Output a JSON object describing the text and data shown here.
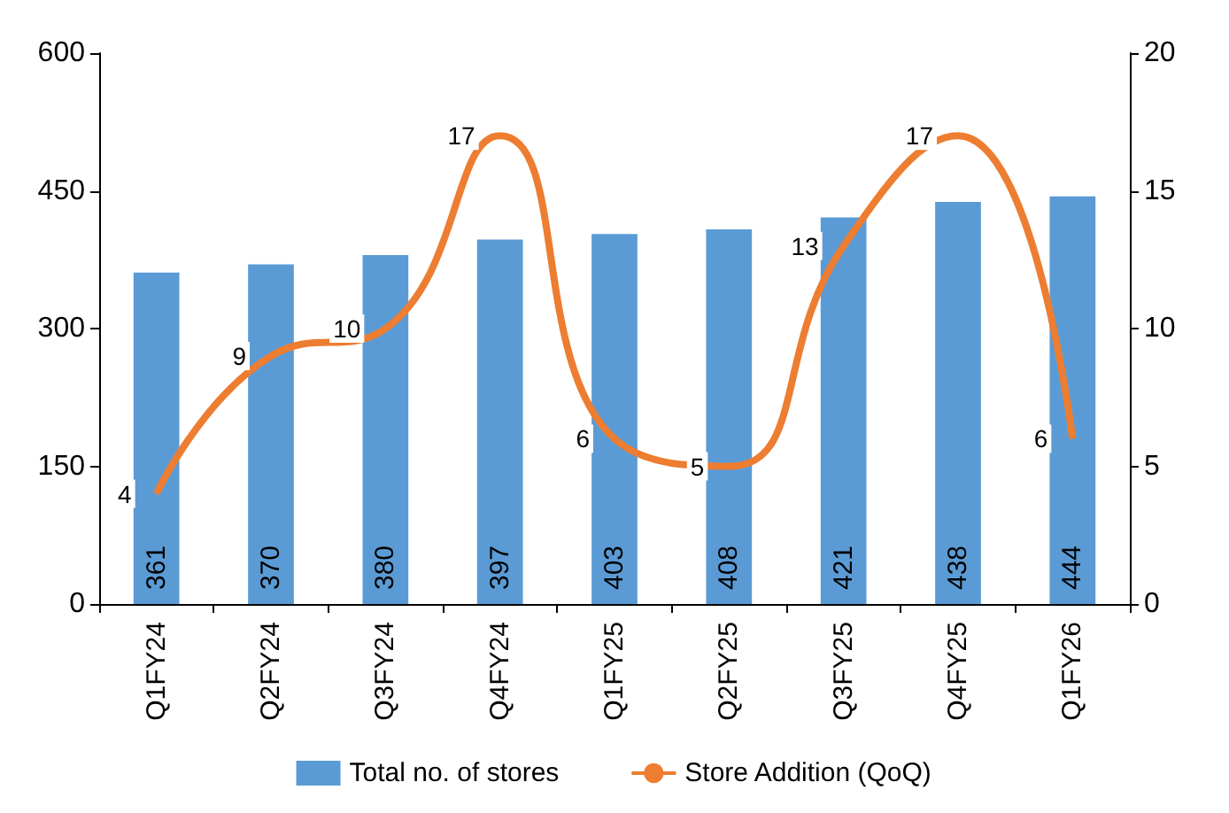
{
  "chart_data": {
    "type": "bar",
    "categories": [
      "Q1FY24",
      "Q2FY24",
      "Q3FY24",
      "Q4FY24",
      "Q1FY25",
      "Q2FY25",
      "Q3FY25",
      "Q4FY25",
      "Q1FY26"
    ],
    "series": [
      {
        "name": "Total no. of stores",
        "color": "#5b9bd5",
        "values": [
          361,
          370,
          380,
          397,
          403,
          408,
          421,
          438,
          444
        ]
      },
      {
        "name": "Store Addition (QoQ)",
        "type": "line",
        "axis": "y2",
        "color": "#ed7d31",
        "values": [
          4,
          9,
          10,
          17,
          6,
          5,
          13,
          17,
          6
        ]
      }
    ],
    "ylim": [
      0,
      600
    ],
    "yticks": [
      0,
      150,
      300,
      450,
      600
    ],
    "y2lim": [
      0,
      20
    ],
    "y2ticks": [
      0,
      5,
      10,
      15,
      20
    ],
    "data_labels": true,
    "grid": false,
    "legend": "bottom",
    "marker": "none",
    "line_style": "solid"
  }
}
